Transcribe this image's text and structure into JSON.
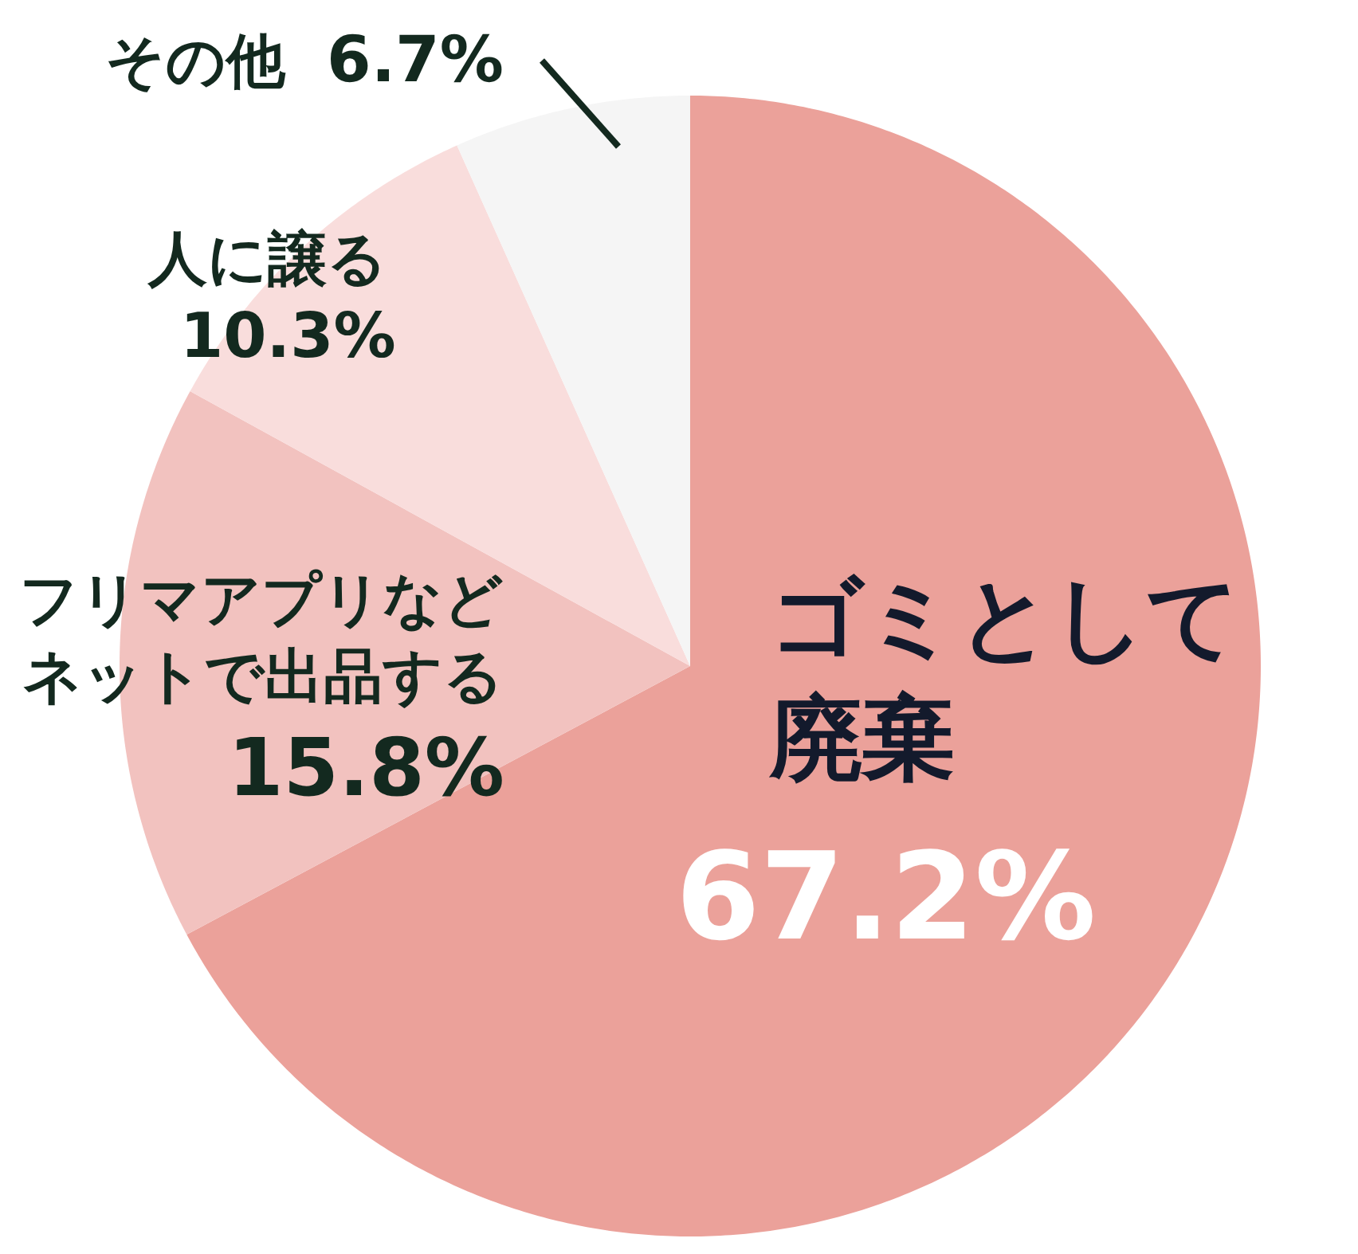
{
  "chart_data": {
    "type": "pie",
    "categories": [
      "ゴミとして廃棄",
      "フリマアプリなどネットで出品する",
      "人に譲る",
      "その他"
    ],
    "values": [
      67.2,
      15.8,
      10.3,
      6.7
    ],
    "colors": [
      "#eba19a",
      "#f2c2bf",
      "#f9dddc",
      "#f5f5f5"
    ],
    "value_labels": [
      "67.2%",
      "15.8%",
      "10.3%",
      "6.7%"
    ]
  }
}
